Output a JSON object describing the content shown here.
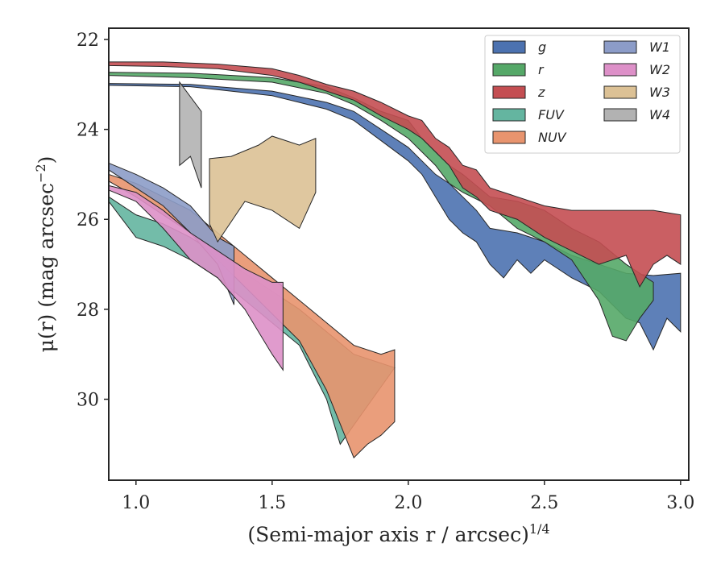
{
  "chart_data": {
    "type": "area",
    "xlabel": "(Semi-major axis r / arcsec)",
    "xlabel_exponent": "1/4",
    "ylabel": "μ(r) (mag arcsec",
    "ylabel_exponent": "−2",
    "ylabel_close": ")",
    "xlim": [
      0.9,
      3.03
    ],
    "ylim": [
      31.8,
      21.75
    ],
    "y_inverted": true,
    "x_ticks": [
      1.0,
      1.5,
      2.0,
      2.5,
      3.0
    ],
    "x_tick_labels": [
      "1.0",
      "1.5",
      "2.0",
      "2.5",
      "3.0"
    ],
    "y_ticks": [
      22,
      24,
      26,
      28,
      30
    ],
    "y_tick_labels": [
      "22",
      "24",
      "26",
      "28",
      "30"
    ],
    "grid": false,
    "legend_position": "top-right",
    "legend_columns": 2,
    "series": [
      {
        "name": "g",
        "color": "#4c72b0",
        "upper": [
          [
            0.9,
            22.98
          ],
          [
            1.2,
            23.0
          ],
          [
            1.5,
            23.15
          ],
          [
            1.7,
            23.4
          ],
          [
            1.8,
            23.6
          ],
          [
            1.9,
            24.0
          ],
          [
            2.0,
            24.4
          ],
          [
            2.05,
            24.7
          ],
          [
            2.1,
            25.0
          ],
          [
            2.15,
            25.2
          ],
          [
            2.2,
            25.5
          ],
          [
            2.25,
            25.8
          ],
          [
            2.3,
            26.2
          ],
          [
            2.4,
            26.3
          ],
          [
            2.5,
            26.5
          ],
          [
            2.6,
            26.8
          ],
          [
            2.7,
            27.0
          ],
          [
            2.8,
            27.2
          ],
          [
            2.9,
            27.25
          ],
          [
            3.0,
            27.2
          ]
        ],
        "lower": [
          [
            0.9,
            23.02
          ],
          [
            1.2,
            23.05
          ],
          [
            1.5,
            23.25
          ],
          [
            1.7,
            23.55
          ],
          [
            1.8,
            23.8
          ],
          [
            1.9,
            24.25
          ],
          [
            2.0,
            24.7
          ],
          [
            2.05,
            25.0
          ],
          [
            2.1,
            25.5
          ],
          [
            2.15,
            26.0
          ],
          [
            2.2,
            26.3
          ],
          [
            2.25,
            26.5
          ],
          [
            2.3,
            27.0
          ],
          [
            2.35,
            27.3
          ],
          [
            2.4,
            26.9
          ],
          [
            2.45,
            27.2
          ],
          [
            2.5,
            26.9
          ],
          [
            2.55,
            27.1
          ],
          [
            2.6,
            27.3
          ],
          [
            2.7,
            27.6
          ],
          [
            2.8,
            28.2
          ],
          [
            2.85,
            28.3
          ],
          [
            2.9,
            28.9
          ],
          [
            2.95,
            28.2
          ],
          [
            3.0,
            28.5
          ]
        ]
      },
      {
        "name": "r",
        "color": "#55a868",
        "upper": [
          [
            0.9,
            22.73
          ],
          [
            1.2,
            22.75
          ],
          [
            1.5,
            22.85
          ],
          [
            1.7,
            23.05
          ],
          [
            1.8,
            23.3
          ],
          [
            1.9,
            23.6
          ],
          [
            2.0,
            23.8
          ],
          [
            2.05,
            24.2
          ],
          [
            2.1,
            24.5
          ],
          [
            2.15,
            24.8
          ],
          [
            2.2,
            25.0
          ],
          [
            2.3,
            25.5
          ],
          [
            2.4,
            25.6
          ],
          [
            2.5,
            25.8
          ],
          [
            2.6,
            26.2
          ],
          [
            2.7,
            26.5
          ],
          [
            2.8,
            27.0
          ],
          [
            2.9,
            27.4
          ]
        ],
        "lower": [
          [
            0.9,
            22.8
          ],
          [
            1.2,
            22.85
          ],
          [
            1.5,
            22.95
          ],
          [
            1.7,
            23.2
          ],
          [
            1.8,
            23.45
          ],
          [
            1.9,
            23.8
          ],
          [
            2.0,
            24.2
          ],
          [
            2.05,
            24.5
          ],
          [
            2.1,
            24.8
          ],
          [
            2.15,
            25.2
          ],
          [
            2.2,
            25.4
          ],
          [
            2.3,
            25.7
          ],
          [
            2.4,
            26.2
          ],
          [
            2.5,
            26.5
          ],
          [
            2.6,
            26.9
          ],
          [
            2.7,
            27.8
          ],
          [
            2.75,
            28.6
          ],
          [
            2.8,
            28.7
          ],
          [
            2.85,
            28.2
          ],
          [
            2.9,
            27.8
          ]
        ]
      },
      {
        "name": "z",
        "color": "#c44e52",
        "upper": [
          [
            0.9,
            22.5
          ],
          [
            1.1,
            22.5
          ],
          [
            1.3,
            22.55
          ],
          [
            1.5,
            22.65
          ],
          [
            1.6,
            22.8
          ],
          [
            1.7,
            23.0
          ],
          [
            1.8,
            23.15
          ],
          [
            1.9,
            23.4
          ],
          [
            2.0,
            23.7
          ],
          [
            2.05,
            23.8
          ],
          [
            2.1,
            24.2
          ],
          [
            2.15,
            24.4
          ],
          [
            2.2,
            24.8
          ],
          [
            2.25,
            24.9
          ],
          [
            2.3,
            25.3
          ],
          [
            2.4,
            25.5
          ],
          [
            2.5,
            25.7
          ],
          [
            2.6,
            25.8
          ],
          [
            2.7,
            25.8
          ],
          [
            2.8,
            25.8
          ],
          [
            2.9,
            25.8
          ],
          [
            3.0,
            25.9
          ]
        ],
        "lower": [
          [
            0.9,
            22.58
          ],
          [
            1.1,
            22.6
          ],
          [
            1.3,
            22.65
          ],
          [
            1.5,
            22.8
          ],
          [
            1.6,
            22.95
          ],
          [
            1.7,
            23.15
          ],
          [
            1.8,
            23.35
          ],
          [
            1.9,
            23.7
          ],
          [
            2.0,
            24.0
          ],
          [
            2.05,
            24.2
          ],
          [
            2.1,
            24.5
          ],
          [
            2.15,
            24.8
          ],
          [
            2.2,
            25.3
          ],
          [
            2.25,
            25.5
          ],
          [
            2.3,
            25.8
          ],
          [
            2.4,
            26.0
          ],
          [
            2.5,
            26.4
          ],
          [
            2.6,
            26.7
          ],
          [
            2.7,
            27.0
          ],
          [
            2.8,
            26.8
          ],
          [
            2.85,
            27.5
          ],
          [
            2.9,
            27.0
          ],
          [
            2.95,
            26.8
          ],
          [
            3.0,
            27.0
          ]
        ]
      },
      {
        "name": "FUV",
        "color": "#64b5a0",
        "upper": [
          [
            0.9,
            25.5
          ],
          [
            1.0,
            25.9
          ],
          [
            1.1,
            26.1
          ],
          [
            1.2,
            26.4
          ],
          [
            1.3,
            26.8
          ],
          [
            1.4,
            27.2
          ],
          [
            1.5,
            27.6
          ],
          [
            1.6,
            28.0
          ],
          [
            1.7,
            28.5
          ],
          [
            1.8,
            29.0
          ],
          [
            1.95,
            29.3
          ]
        ],
        "lower": [
          [
            0.9,
            25.6
          ],
          [
            1.0,
            26.4
          ],
          [
            1.1,
            26.6
          ],
          [
            1.2,
            26.9
          ],
          [
            1.3,
            27.3
          ],
          [
            1.4,
            27.8
          ],
          [
            1.5,
            28.3
          ],
          [
            1.6,
            28.8
          ],
          [
            1.7,
            30.0
          ],
          [
            1.75,
            31.0
          ]
        ]
      },
      {
        "name": "NUV",
        "color": "#e8946e",
        "upper": [
          [
            0.9,
            25.0
          ],
          [
            1.0,
            25.2
          ],
          [
            1.1,
            25.5
          ],
          [
            1.2,
            25.8
          ],
          [
            1.3,
            26.3
          ],
          [
            1.4,
            26.8
          ],
          [
            1.5,
            27.3
          ],
          [
            1.6,
            27.8
          ],
          [
            1.7,
            28.3
          ],
          [
            1.8,
            28.8
          ],
          [
            1.9,
            29.0
          ],
          [
            1.95,
            28.9
          ]
        ],
        "lower": [
          [
            0.9,
            25.15
          ],
          [
            1.0,
            25.5
          ],
          [
            1.1,
            25.9
          ],
          [
            1.2,
            26.3
          ],
          [
            1.3,
            26.9
          ],
          [
            1.4,
            27.5
          ],
          [
            1.5,
            28.1
          ],
          [
            1.6,
            28.7
          ],
          [
            1.7,
            29.8
          ],
          [
            1.8,
            31.3
          ],
          [
            1.85,
            31.0
          ],
          [
            1.9,
            30.8
          ],
          [
            1.95,
            30.5
          ]
        ]
      },
      {
        "name": "W1",
        "color": "#8c9cc8",
        "upper": [
          [
            0.9,
            24.75
          ],
          [
            1.0,
            25.0
          ],
          [
            1.1,
            25.3
          ],
          [
            1.2,
            25.7
          ],
          [
            1.3,
            26.4
          ],
          [
            1.36,
            26.6
          ]
        ],
        "lower": [
          [
            0.9,
            24.9
          ],
          [
            1.0,
            25.3
          ],
          [
            1.1,
            25.7
          ],
          [
            1.2,
            26.3
          ],
          [
            1.3,
            27.0
          ],
          [
            1.36,
            27.9
          ]
        ]
      },
      {
        "name": "W2",
        "color": "#dd90c8",
        "upper": [
          [
            0.9,
            25.25
          ],
          [
            1.0,
            25.4
          ],
          [
            1.1,
            25.8
          ],
          [
            1.2,
            26.3
          ],
          [
            1.3,
            26.7
          ],
          [
            1.4,
            27.1
          ],
          [
            1.5,
            27.4
          ],
          [
            1.54,
            27.4
          ]
        ],
        "lower": [
          [
            0.9,
            25.35
          ],
          [
            1.0,
            25.6
          ],
          [
            1.1,
            26.2
          ],
          [
            1.2,
            26.9
          ],
          [
            1.3,
            27.3
          ],
          [
            1.4,
            28.0
          ],
          [
            1.5,
            29.0
          ],
          [
            1.54,
            29.35
          ]
        ]
      },
      {
        "name": "W3",
        "color": "#dcc195",
        "upper": [
          [
            1.27,
            24.65
          ],
          [
            1.35,
            24.6
          ],
          [
            1.45,
            24.35
          ],
          [
            1.5,
            24.15
          ],
          [
            1.6,
            24.35
          ],
          [
            1.66,
            24.2
          ]
        ],
        "lower": [
          [
            1.27,
            26.1
          ],
          [
            1.3,
            26.5
          ],
          [
            1.4,
            25.6
          ],
          [
            1.5,
            25.8
          ],
          [
            1.6,
            26.2
          ],
          [
            1.66,
            25.4
          ]
        ]
      },
      {
        "name": "W4",
        "color": "#b2b2b2",
        "upper": [
          [
            1.16,
            22.95
          ],
          [
            1.24,
            23.6
          ]
        ],
        "lower": [
          [
            1.16,
            24.8
          ],
          [
            1.2,
            24.6
          ],
          [
            1.24,
            25.3
          ]
        ]
      }
    ]
  }
}
